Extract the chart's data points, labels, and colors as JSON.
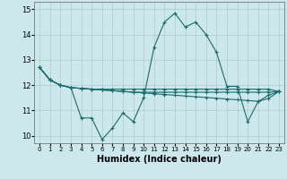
{
  "xlabel": "Humidex (Indice chaleur)",
  "xlim": [
    -0.5,
    23.5
  ],
  "ylim": [
    9.7,
    15.3
  ],
  "yticks": [
    10,
    11,
    12,
    13,
    14,
    15
  ],
  "xticks": [
    0,
    1,
    2,
    3,
    4,
    5,
    6,
    7,
    8,
    9,
    10,
    11,
    12,
    13,
    14,
    15,
    16,
    17,
    18,
    19,
    20,
    21,
    22,
    23
  ],
  "bg": "#cce8ec",
  "grid_color": "#aacccc",
  "line_color": "#1a6b6b",
  "lines": [
    [
      12.7,
      12.2,
      12.0,
      11.9,
      10.7,
      10.7,
      9.85,
      10.3,
      10.9,
      10.55,
      11.5,
      13.5,
      14.5,
      14.85,
      14.3,
      14.5,
      14.0,
      13.3,
      11.95,
      11.95,
      10.55,
      11.35,
      11.6,
      11.75
    ],
    [
      12.7,
      12.2,
      12.0,
      11.9,
      11.87,
      11.84,
      11.81,
      11.78,
      11.75,
      11.72,
      11.69,
      11.66,
      11.63,
      11.6,
      11.57,
      11.54,
      11.51,
      11.48,
      11.45,
      11.42,
      11.39,
      11.36,
      11.47,
      11.75
    ],
    [
      12.7,
      12.2,
      12.0,
      11.9,
      11.87,
      11.84,
      11.81,
      11.78,
      11.75,
      11.72,
      11.72,
      11.72,
      11.72,
      11.72,
      11.72,
      11.72,
      11.72,
      11.72,
      11.72,
      11.72,
      11.72,
      11.72,
      11.72,
      11.75
    ],
    [
      12.7,
      12.2,
      12.0,
      11.9,
      11.87,
      11.84,
      11.84,
      11.84,
      11.84,
      11.84,
      11.84,
      11.84,
      11.84,
      11.84,
      11.84,
      11.84,
      11.84,
      11.84,
      11.84,
      11.84,
      11.84,
      11.84,
      11.84,
      11.75
    ]
  ]
}
